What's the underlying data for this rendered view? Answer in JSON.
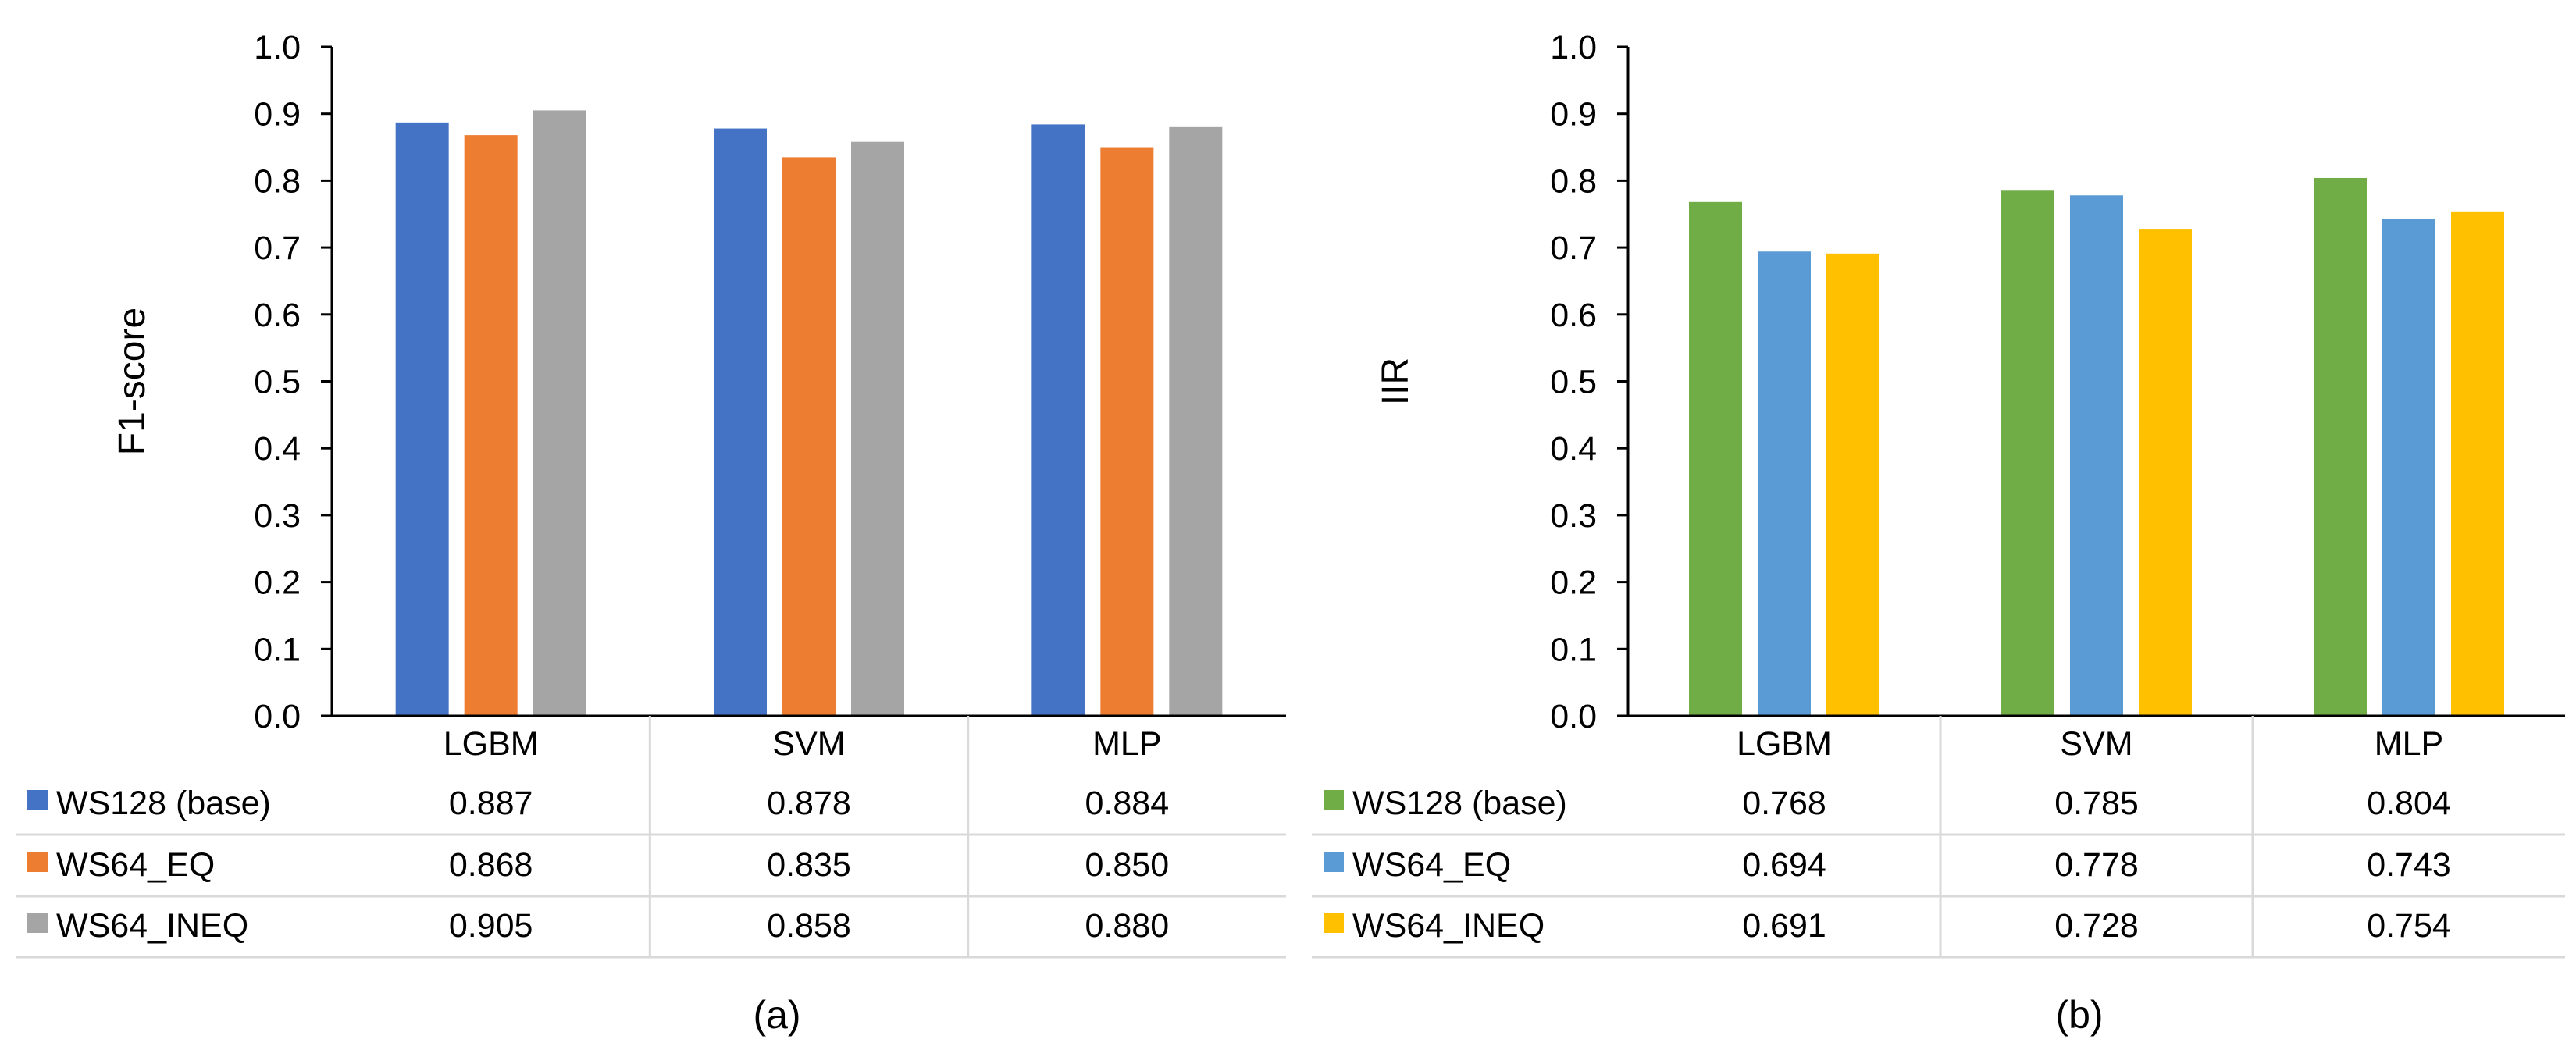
{
  "chart_data": [
    {
      "type": "bar",
      "panel_label": "(a)",
      "categories": [
        "LGBM",
        "SVM",
        "MLP"
      ],
      "ylabel": "F1-score",
      "ylim": [
        0,
        1.0
      ],
      "yticks": [
        "0.0",
        "0.1",
        "0.2",
        "0.3",
        "0.4",
        "0.5",
        "0.6",
        "0.7",
        "0.8",
        "0.9",
        "1.0"
      ],
      "grid": false,
      "series": [
        {
          "name": "WS128 (base)",
          "color": "#4472C4",
          "values": [
            0.887,
            0.878,
            0.884
          ],
          "labels": [
            "0.887",
            "0.878",
            "0.884"
          ]
        },
        {
          "name": "WS64_EQ",
          "color": "#ED7D31",
          "values": [
            0.868,
            0.835,
            0.85
          ],
          "labels": [
            "0.868",
            "0.835",
            "0.850"
          ]
        },
        {
          "name": "WS64_INEQ",
          "color": "#A5A5A5",
          "values": [
            0.905,
            0.858,
            0.88
          ],
          "labels": [
            "0.905",
            "0.858",
            "0.880"
          ]
        }
      ]
    },
    {
      "type": "bar",
      "panel_label": "(b)",
      "categories": [
        "LGBM",
        "SVM",
        "MLP"
      ],
      "ylabel": "IIR",
      "ylim": [
        0,
        1.0
      ],
      "yticks": [
        "0.0",
        "0.1",
        "0.2",
        "0.3",
        "0.4",
        "0.5",
        "0.6",
        "0.7",
        "0.8",
        "0.9",
        "1.0"
      ],
      "grid": false,
      "series": [
        {
          "name": "WS128 (base)",
          "color": "#70AD47",
          "values": [
            0.768,
            0.785,
            0.804
          ],
          "labels": [
            "0.768",
            "0.785",
            "0.804"
          ]
        },
        {
          "name": "WS64_EQ",
          "color": "#5B9BD5",
          "values": [
            0.694,
            0.778,
            0.743
          ],
          "labels": [
            "0.694",
            "0.778",
            "0.743"
          ]
        },
        {
          "name": "WS64_INEQ",
          "color": "#FFC000",
          "values": [
            0.691,
            0.728,
            0.754
          ],
          "labels": [
            "0.691",
            "0.728",
            "0.754"
          ]
        }
      ]
    }
  ]
}
